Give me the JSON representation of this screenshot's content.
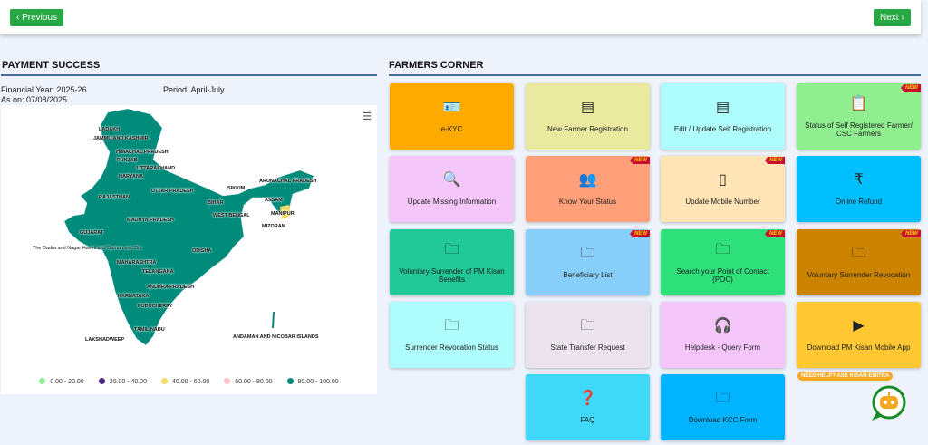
{
  "nav": {
    "previous": "Previous",
    "next": "Next"
  },
  "payment": {
    "title": "PAYMENT SUCCESS",
    "financial_year": "Financial Year: 2025-26",
    "period": "Period: April-July",
    "as_on": "As on: 07/08/2025",
    "menu_icon": "hamburger-icon",
    "legend": [
      {
        "label": "0.00 - 20.00",
        "color": "#90ee90"
      },
      {
        "label": "20.00 - 40.00",
        "color": "#4b2c83"
      },
      {
        "label": "40.00 - 60.00",
        "color": "#f5dc6a"
      },
      {
        "label": "60.00 - 80.00",
        "color": "#ffc0cb"
      },
      {
        "label": "80.00 - 100.00",
        "color": "#008b7a"
      }
    ],
    "states": [
      "LADAKH",
      "JAMMU AND KASHMIR",
      "HIMACHAL PRADESH",
      "PUNJAB",
      "UTTARAKHAND",
      "HARYANA",
      "RAJASTHAN",
      "UTTAR PRADESH",
      "SIKKIM",
      "ARUNACHAL PRADESH",
      "ASSAM",
      "BIHAR",
      "MANIPUR",
      "WEST BENGAL",
      "MADHYA PRADESH",
      "MIZORAM",
      "GUJARAT",
      "The Dadra and Nagar Haveli and Daman and Diu",
      "ODISHA",
      "MAHARASHTRA",
      "TELANGANA",
      "ANDHRA PRADESH",
      "KARNATAKA",
      "PUDUCHERRY",
      "TAMIL NADU",
      "LAKSHADWEEP",
      "ANDAMAN AND NICOBAR ISLANDS"
    ]
  },
  "farmers": {
    "title": "FARMERS CORNER",
    "new_badge": "NEW",
    "tiles": [
      {
        "label": "e-KYC",
        "icon": "id-card-icon",
        "color": "#ffaa00"
      },
      {
        "label": "New Farmer Registration",
        "icon": "cash-register-icon",
        "color": "#e9eaa0"
      },
      {
        "label": "Edit / Update Self Registration",
        "icon": "cash-register-icon",
        "color": "#aefcfc"
      },
      {
        "label": "Status of Self Registered Farmer/ CSC Farmers",
        "icon": "clipboard-icon",
        "color": "#90ee90",
        "new": true
      },
      {
        "label": "Update Missing Information",
        "icon": "user-search-icon",
        "color": "#f5c6fa"
      },
      {
        "label": "Know Your Status",
        "icon": "users-icon",
        "color": "#ffa07a",
        "new": true
      },
      {
        "label": "Update Mobile Number",
        "icon": "mobile-icon",
        "color": "#ffe4b5",
        "new": true
      },
      {
        "label": "Online Refund",
        "icon": "rupee-refund-icon",
        "color": "#00bfff"
      },
      {
        "label": "Voluntary Surrender of PM Kisan Benefits",
        "icon": "folder-download-icon",
        "color": "#20c997"
      },
      {
        "label": "Beneficiary List",
        "icon": "folder-user-icon",
        "color": "#87cefa",
        "new": true
      },
      {
        "label": "Search your Point of Contact (POC)",
        "icon": "folder-user-icon",
        "color": "#2ee07a",
        "new": true
      },
      {
        "label": "Voluntary Surrender Revocation",
        "icon": "folder-user-icon",
        "color": "#cc8400",
        "new": true
      },
      {
        "label": "Surrender Revocation Status",
        "icon": "folder-user-icon",
        "color": "#aefcfc"
      },
      {
        "label": "State Transfer Request",
        "icon": "folder-user-icon",
        "color": "#ebe4ef"
      },
      {
        "label": "Helpdesk - Query Form",
        "icon": "headphones-icon",
        "color": "#f5c6fa"
      },
      {
        "label": "Download PM Kisan Mobile App",
        "icon": "play-store-icon",
        "color": "#ffc832"
      },
      {
        "label": "FAQ",
        "icon": "faq-icon",
        "color": "#40d8f8"
      },
      {
        "label": "Download KCC Form",
        "icon": "folder-download-icon",
        "color": "#00b4ff"
      }
    ]
  },
  "chatbot": {
    "help_text": "NEED HELP? ASK KISAN-EMITRA"
  }
}
